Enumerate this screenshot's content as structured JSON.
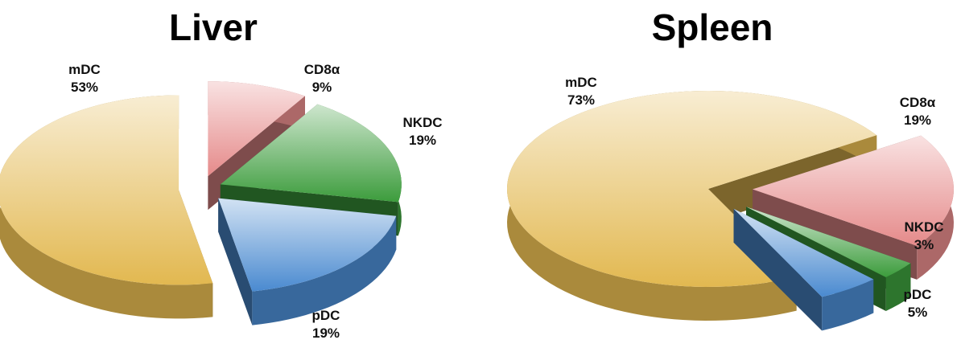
{
  "chart_data": [
    {
      "type": "pie",
      "title": "Liver",
      "categories": [
        "mDC",
        "CD8α",
        "NKDC",
        "pDC"
      ],
      "values": [
        53,
        9,
        19,
        19
      ],
      "value_labels": [
        "53%",
        "9%",
        "19%",
        "19%"
      ],
      "colors": [
        "#e2b850",
        "#e58a8a",
        "#3c9c3c",
        "#4a8ad0"
      ]
    },
    {
      "type": "pie",
      "title": "Spleen",
      "categories": [
        "mDC",
        "CD8α",
        "NKDC",
        "pDC"
      ],
      "values": [
        73,
        19,
        3,
        5
      ],
      "value_labels": [
        "73%",
        "19%",
        "3%",
        "5%"
      ],
      "colors": [
        "#e2b850",
        "#e58a8a",
        "#3c9c3c",
        "#4a8ad0"
      ]
    }
  ]
}
